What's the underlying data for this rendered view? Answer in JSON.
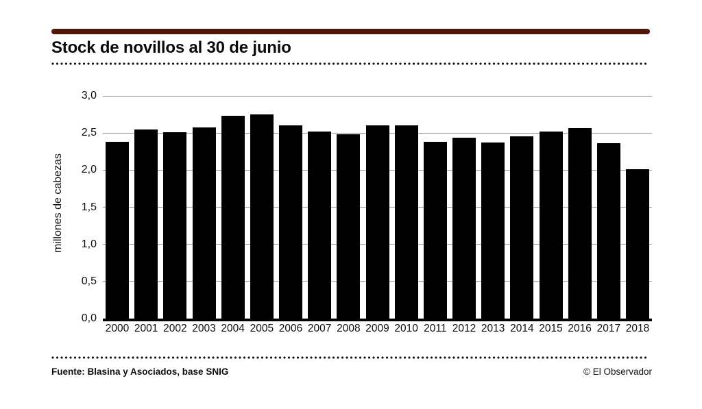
{
  "header": {
    "title": "Stock de novillos al 30 de junio"
  },
  "chart_data": {
    "type": "bar",
    "title": "Stock de novillos al 30 de junio",
    "categories": [
      "2000",
      "2001",
      "2002",
      "2003",
      "2004",
      "2005",
      "2006",
      "2007",
      "2008",
      "2009",
      "2010",
      "2011",
      "2012",
      "2013",
      "2014",
      "2015",
      "2016",
      "2017",
      "2018"
    ],
    "values": [
      2.38,
      2.55,
      2.51,
      2.58,
      2.73,
      2.75,
      2.6,
      2.52,
      2.48,
      2.6,
      2.6,
      2.38,
      2.44,
      2.37,
      2.46,
      2.52,
      2.57,
      2.36,
      2.01
    ],
    "xlabel": "",
    "ylabel": "millones de cabezas",
    "ylim": [
      0,
      3.0
    ],
    "ytick_step": 0.5,
    "ytick_labels": [
      "0,0",
      "0,5",
      "1,0",
      "1,5",
      "2,0",
      "2,5",
      "3,0"
    ],
    "grid": true,
    "legend": "none"
  },
  "footer": {
    "source": "Fuente: Blasina y Asociados, base SNIG",
    "credit": "© El Observador"
  },
  "colors": {
    "accent_rule": "#4f1708",
    "bar": "#000000",
    "gridline": "#9a9a9a",
    "text": "#0e0e0e"
  }
}
